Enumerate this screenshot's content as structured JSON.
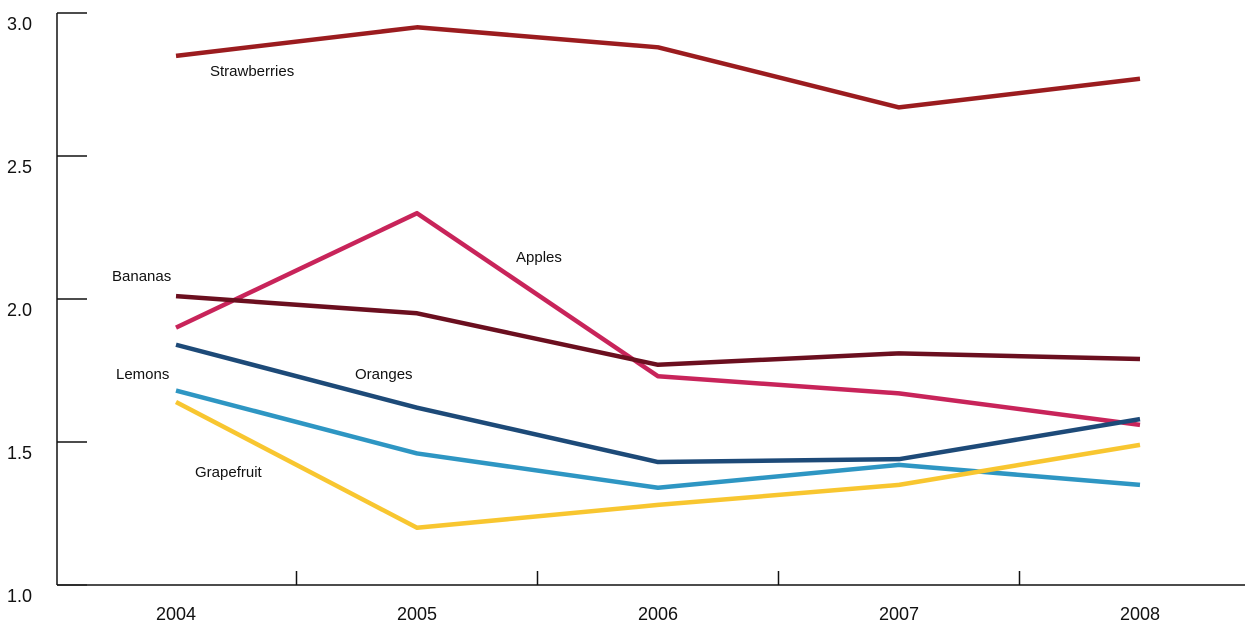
{
  "chart_data": {
    "type": "line",
    "categories": [
      "2004",
      "2005",
      "2006",
      "2007",
      "2008"
    ],
    "series": [
      {
        "name": "Strawberries",
        "color": "#9b1c1f",
        "values": [
          2.85,
          2.95,
          2.88,
          2.67,
          2.77
        ]
      },
      {
        "name": "Apples",
        "color": "#c8245a",
        "values": [
          1.9,
          2.3,
          1.73,
          1.67,
          1.56
        ]
      },
      {
        "name": "Bananas",
        "color": "#6b0f1f",
        "values": [
          2.01,
          1.95,
          1.77,
          1.81,
          1.79
        ]
      },
      {
        "name": "Oranges",
        "color": "#1d4a78",
        "values": [
          1.84,
          1.62,
          1.43,
          1.44,
          1.58
        ]
      },
      {
        "name": "Lemons",
        "color": "#2e96c3",
        "values": [
          1.68,
          1.46,
          1.34,
          1.42,
          1.35
        ]
      },
      {
        "name": "Grapefruit",
        "color": "#f8c630",
        "values": [
          1.64,
          1.2,
          1.28,
          1.35,
          1.49
        ]
      }
    ],
    "ylim": [
      1.0,
      3.0
    ],
    "yticks": [
      {
        "value": 1.0,
        "label": "1.0"
      },
      1.5,
      {
        "value": 2.0,
        "label": "2.0"
      },
      2.5,
      {
        "value": 3.0,
        "label": "3.0"
      }
    ]
  }
}
